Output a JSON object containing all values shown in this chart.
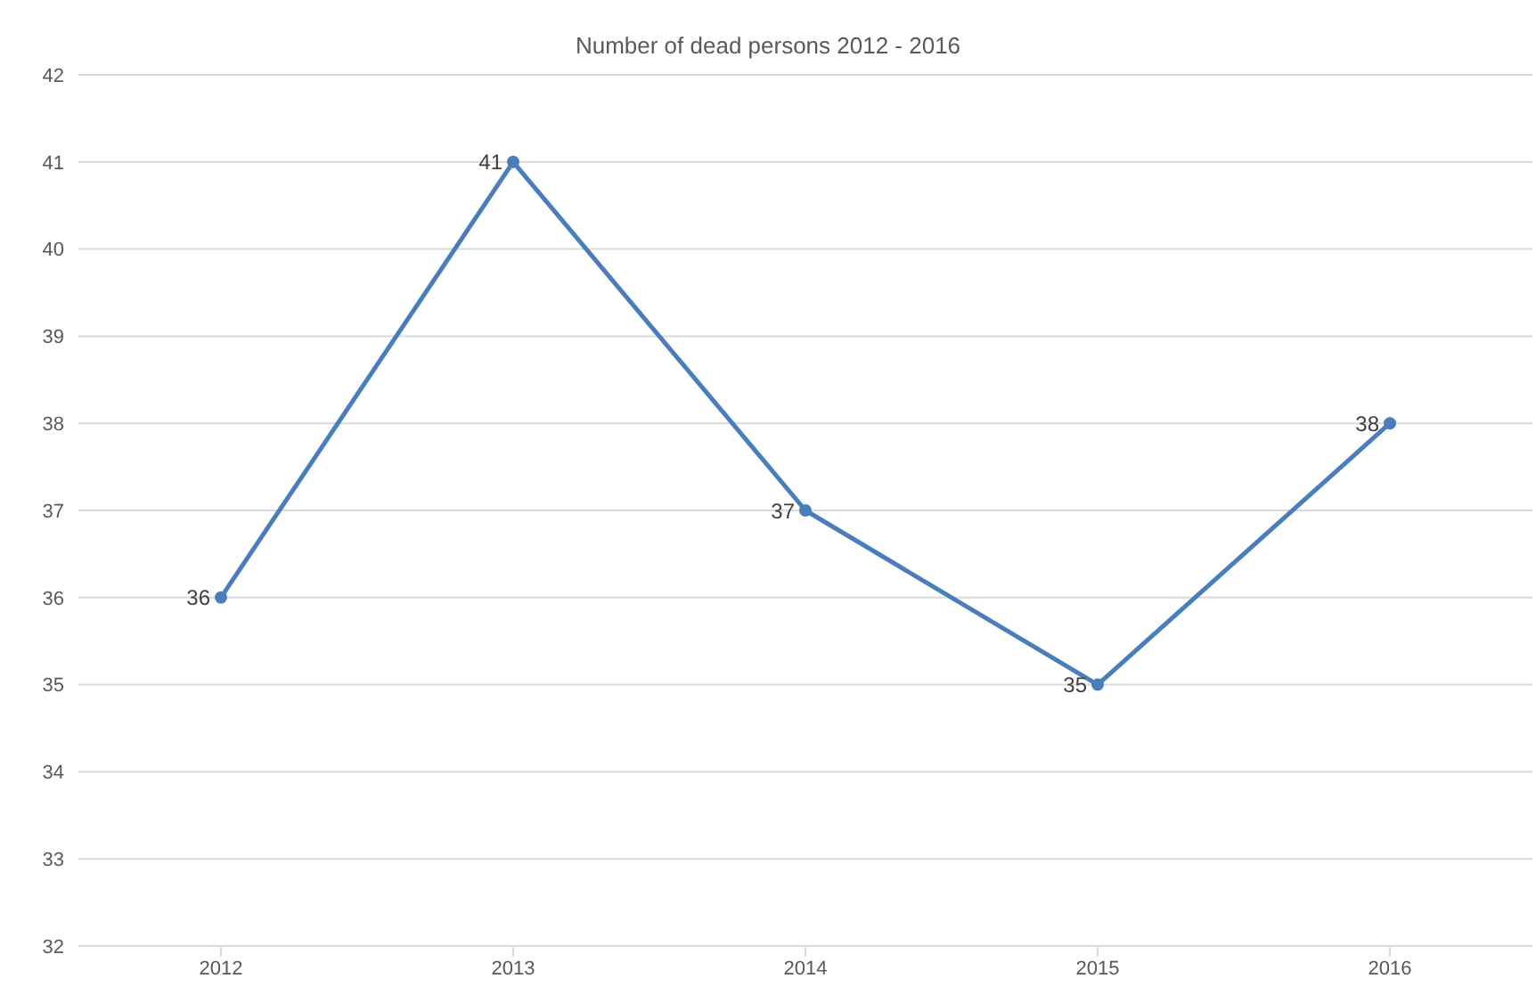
{
  "chart_data": {
    "type": "line",
    "title": "Number of dead persons 2012 - 2016",
    "categories": [
      "2012",
      "2013",
      "2014",
      "2015",
      "2016"
    ],
    "series": [
      {
        "color": "#4a7ebb",
        "values": [
          36,
          41,
          37,
          35,
          38
        ]
      }
    ],
    "ylim": [
      32,
      42
    ],
    "yticks": [
      32,
      33,
      34,
      35,
      36,
      37,
      38,
      39,
      40,
      41,
      42
    ],
    "grid": "y",
    "marker": "circle",
    "data_labels": true
  }
}
